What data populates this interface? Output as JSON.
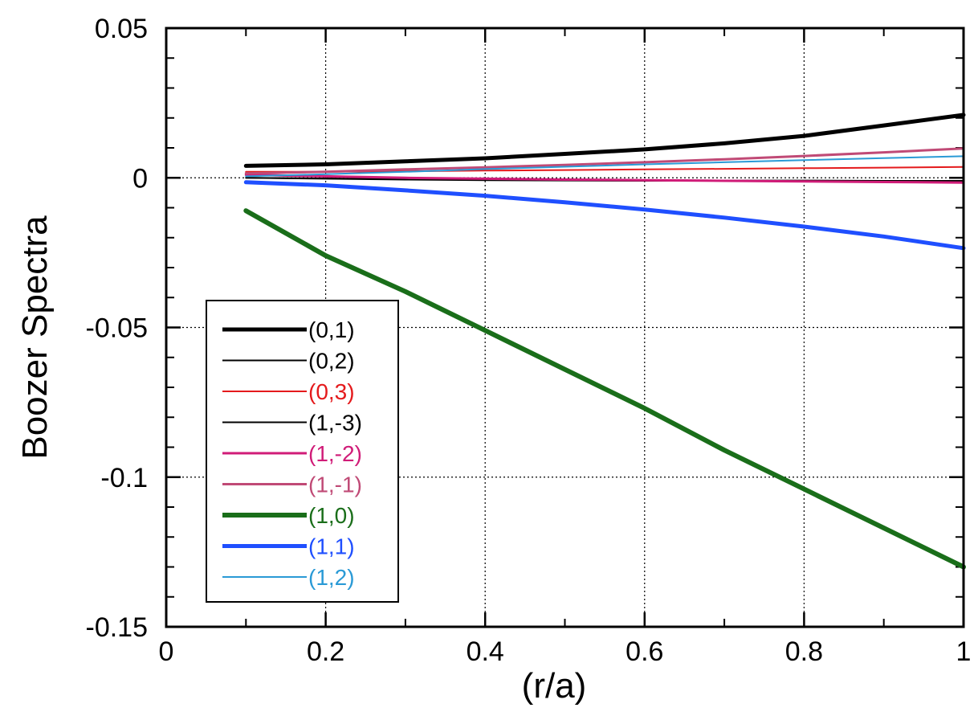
{
  "chart_data": {
    "type": "line",
    "title": "",
    "xlabel": "(r/a)",
    "ylabel": "Boozer Spectra",
    "xlim": [
      0,
      1
    ],
    "ylim": [
      -0.15,
      0.05
    ],
    "xticks": [
      0,
      0.2,
      0.4,
      0.6,
      0.8,
      1
    ],
    "xtick_labels": [
      "0",
      "0.2",
      "0.4",
      "0.6",
      "0.8",
      "1"
    ],
    "yticks": [
      -0.15,
      -0.1,
      -0.05,
      0,
      0.05
    ],
    "ytick_labels": [
      "-0.15",
      "-0.1",
      "-0.05",
      "0",
      "0.05"
    ],
    "grid": true,
    "legend_position": "lower-left",
    "x": [
      0.1,
      0.2,
      0.3,
      0.4,
      0.5,
      0.6,
      0.7,
      0.8,
      0.9,
      1.0
    ],
    "series": [
      {
        "name": "(0,1)",
        "color": "#000000",
        "width": 5,
        "label_color": "#000000",
        "values": [
          0.004,
          0.0045,
          0.0055,
          0.0065,
          0.008,
          0.0095,
          0.0115,
          0.014,
          0.0175,
          0.021
        ]
      },
      {
        "name": "(0,2)",
        "color": "#000000",
        "width": 2,
        "label_color": "#000000",
        "values": [
          0.0,
          -0.0003,
          -0.0006,
          -0.0008,
          -0.0009,
          -0.001,
          -0.001,
          -0.001,
          -0.001,
          -0.001
        ]
      },
      {
        "name": "(0,3)",
        "color": "#e41a1c",
        "width": 2,
        "label_color": "#e41a1c",
        "values": [
          0.002,
          0.002,
          0.0022,
          0.0024,
          0.0026,
          0.0028,
          0.003,
          0.0032,
          0.0034,
          0.0036
        ]
      },
      {
        "name": "(1,-3)",
        "color": "#000000",
        "width": 2,
        "label_color": "#000000",
        "values": [
          0.0,
          -0.0002,
          -0.0004,
          -0.0006,
          -0.0007,
          -0.0008,
          -0.0009,
          -0.0009,
          -0.001,
          -0.001
        ]
      },
      {
        "name": "(1,-2)",
        "color": "#d01c78",
        "width": 3,
        "label_color": "#d01c78",
        "values": [
          0.001,
          0.0005,
          0.0,
          -0.0003,
          -0.0006,
          -0.0008,
          -0.001,
          -0.0012,
          -0.0014,
          -0.0016
        ]
      },
      {
        "name": "(1,-1)",
        "color": "#c04a76",
        "width": 3,
        "label_color": "#c04a76",
        "values": [
          0.0015,
          0.002,
          0.0028,
          0.0035,
          0.0043,
          0.0052,
          0.0062,
          0.0073,
          0.0085,
          0.0098
        ]
      },
      {
        "name": "(1,0)",
        "color": "#1a6e1a",
        "width": 6,
        "label_color": "#1a6e1a",
        "values": [
          -0.011,
          -0.026,
          -0.038,
          -0.051,
          -0.064,
          -0.077,
          -0.091,
          -0.104,
          -0.117,
          -0.13
        ]
      },
      {
        "name": "(1,1)",
        "color": "#1f4fff",
        "width": 5,
        "label_color": "#1f4fff",
        "values": [
          -0.0015,
          -0.0025,
          -0.0042,
          -0.006,
          -0.0082,
          -0.0106,
          -0.0133,
          -0.0163,
          -0.0196,
          -0.0235
        ]
      },
      {
        "name": "(1,2)",
        "color": "#2a9ad6",
        "width": 2,
        "label_color": "#2a9ad6",
        "values": [
          0.0005,
          0.0012,
          0.002,
          0.0029,
          0.0037,
          0.0045,
          0.0052,
          0.0059,
          0.0066,
          0.0072
        ]
      }
    ]
  }
}
